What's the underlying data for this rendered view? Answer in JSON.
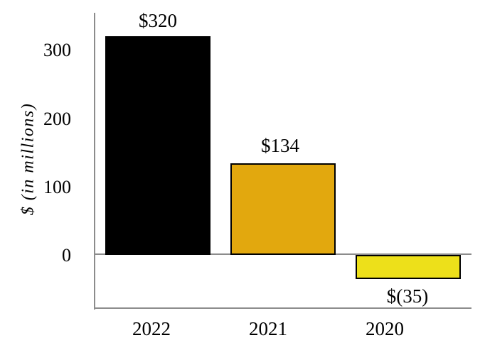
{
  "chart_data": {
    "type": "bar",
    "title": "",
    "xlabel": "",
    "ylabel": "$ (in millions)",
    "categories": [
      "2022",
      "2021",
      "2020"
    ],
    "values": [
      320,
      134,
      -35
    ],
    "value_labels": [
      "$320",
      "$134",
      "$(35)"
    ],
    "bar_colors": [
      "#000000",
      "#E2A80E",
      "#EDE01A"
    ],
    "bar_border_color": "#000000",
    "axis_color": "#8c8c8c",
    "yticks": [
      0,
      100,
      200,
      300
    ],
    "ytick_labels": [
      "0",
      "100",
      "200",
      "300"
    ],
    "ylim": [
      -80,
      350
    ],
    "grid": "off",
    "legend": "none"
  }
}
